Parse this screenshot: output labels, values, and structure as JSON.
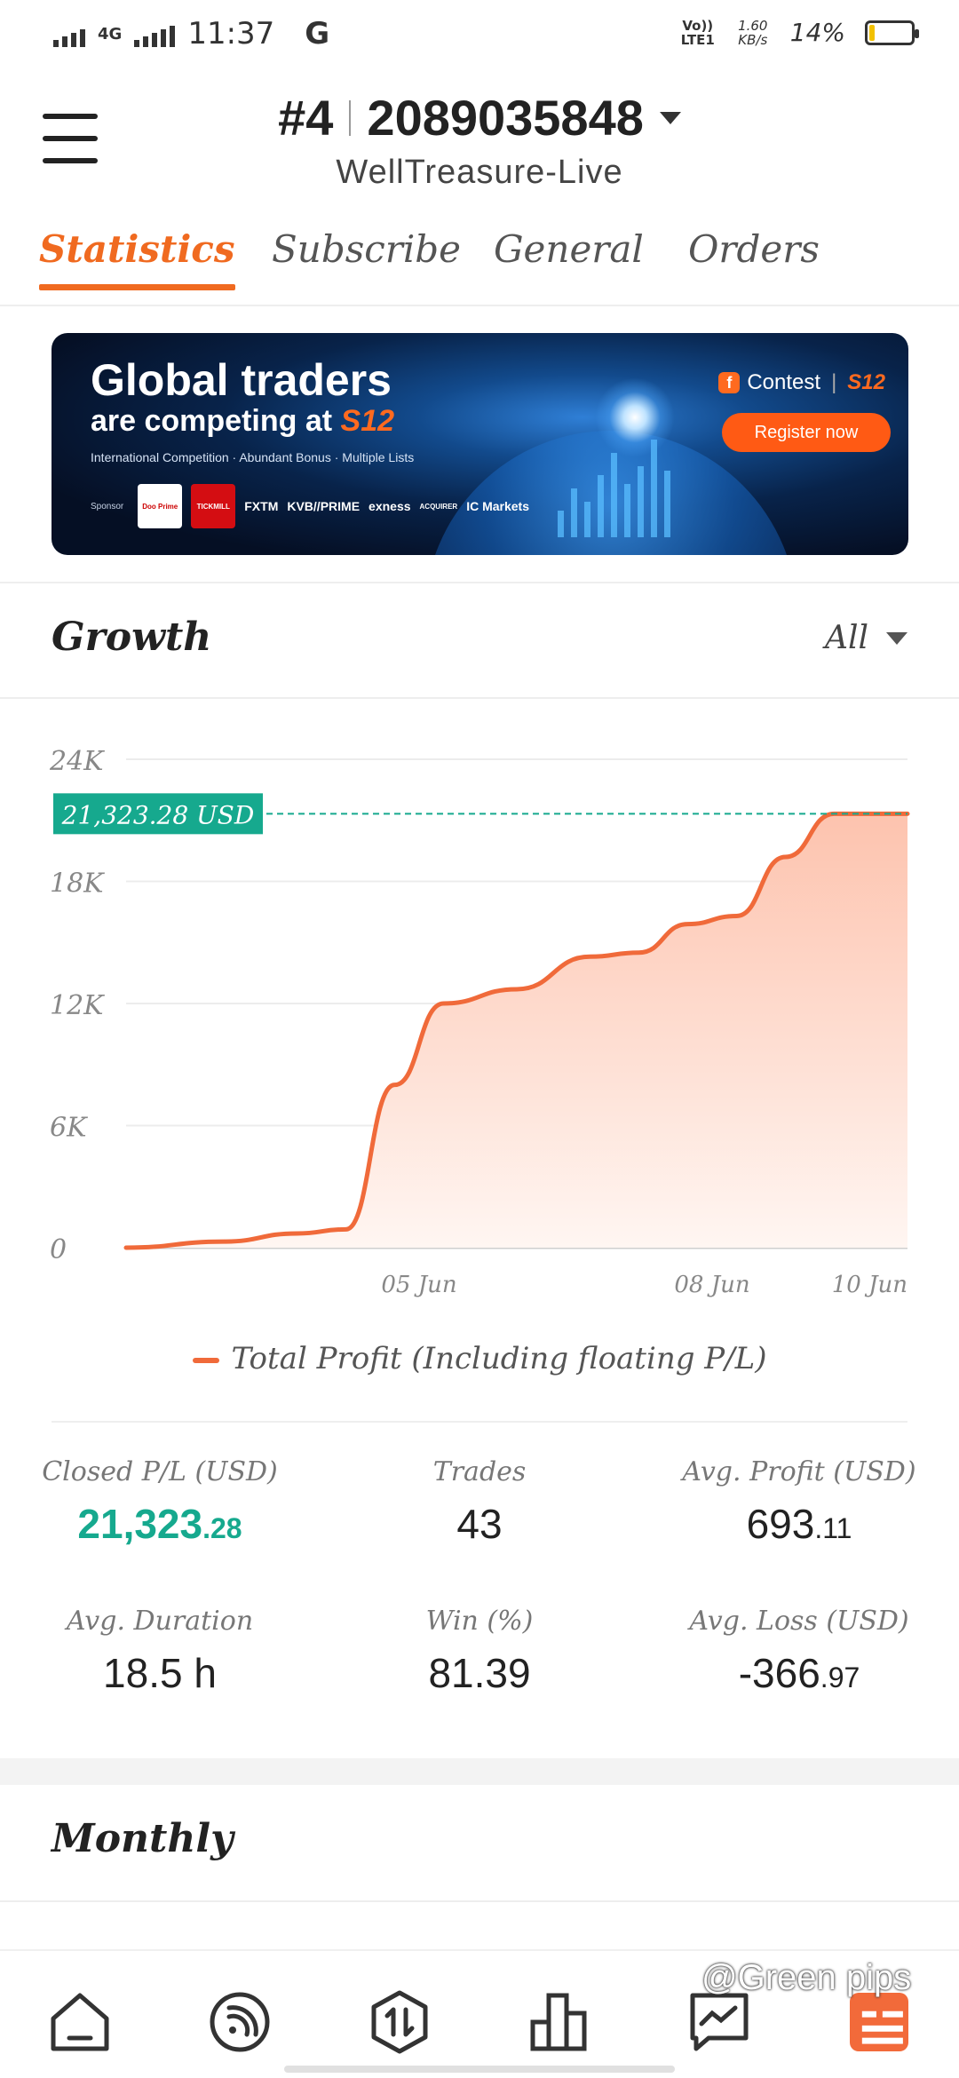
{
  "status_bar": {
    "network": "4G",
    "time": "11:37",
    "g_label": "G",
    "volte": "Vo)) LTE1",
    "speed": "1.60 KB/s",
    "battery": "14%",
    "battery_level": 0.14
  },
  "header": {
    "account_rank": "#4",
    "account_number": "2089035848",
    "server": "WellTreasure-Live"
  },
  "tabs": [
    {
      "label": "Statistics",
      "active": true
    },
    {
      "label": "Subscribe",
      "active": false
    },
    {
      "label": "General",
      "active": false
    },
    {
      "label": "Orders",
      "active": false
    }
  ],
  "banner": {
    "title_line1": "Global traders",
    "title_line2": "are competing at",
    "title_brand": "S12",
    "subtitle": "International Competition · Abundant Bonus · Multiple Lists",
    "sponsor_label": "Sponsor",
    "sponsors": [
      "Doo Prime",
      "TICKMILL",
      "FXTM",
      "KVB//PRIME",
      "exness",
      "ACQUIRER",
      "IC Markets"
    ],
    "contest_label": "Contest",
    "contest_brand": "S12",
    "register_label": "Register now"
  },
  "growth": {
    "title": "Growth",
    "range": "All",
    "current_value_label": "21,323.28 USD"
  },
  "chart_data": {
    "type": "area",
    "title": "",
    "xlabel": "",
    "ylabel": "",
    "ylim": [
      0,
      24000
    ],
    "y_ticks": [
      "24K",
      "18K",
      "12K",
      "6K",
      "0"
    ],
    "x_ticks": [
      "05 Jun",
      "08 Jun",
      "10 Jun"
    ],
    "x": [
      "02 Jun",
      "03 Jun",
      "04 Jun",
      "04 Jun",
      "05 Jun",
      "05 Jun",
      "06 Jun",
      "07 Jun",
      "07 Jun",
      "08 Jun",
      "08 Jun",
      "09 Jun",
      "09 Jun",
      "10 Jun"
    ],
    "series": [
      {
        "name": "Total Profit (Including floating P/L)",
        "color": "#f06a3a",
        "values": [
          0,
          300,
          700,
          900,
          8000,
          12000,
          12700,
          14300,
          14500,
          15900,
          16300,
          19200,
          21323.28,
          21323.28
        ]
      }
    ],
    "reference_line": {
      "value": 21323.28,
      "label": "21,323.28 USD",
      "color": "#16a98e"
    },
    "legend": "bottom-center",
    "grid": true
  },
  "stats": {
    "closed_pl": {
      "label": "Closed P/L (USD)",
      "int": "21,323",
      "dec": ".28"
    },
    "trades": {
      "label": "Trades",
      "value": "43"
    },
    "avg_profit": {
      "label": "Avg. Profit (USD)",
      "int": "693",
      "dec": ".11"
    },
    "avg_duration": {
      "label": "Avg. Duration",
      "value": "18.5 h"
    },
    "win": {
      "label": "Win (%)",
      "value": "81.39"
    },
    "avg_loss": {
      "label": "Avg. Loss (USD)",
      "int": "-366",
      "dec": ".97"
    }
  },
  "monthly": {
    "title": "Monthly"
  },
  "bottom_nav": [
    {
      "icon": "home-icon"
    },
    {
      "icon": "signal-icon"
    },
    {
      "icon": "trade-icon"
    },
    {
      "icon": "chart-bars-icon"
    },
    {
      "icon": "message-icon"
    },
    {
      "icon": "profile-card-icon",
      "active": true
    }
  ],
  "watermark": "@Green pips",
  "colors": {
    "accent": "#f06a20",
    "positive": "#16a98e",
    "area_top": "#fdc3ae",
    "area_bottom": "#fff6f2"
  }
}
